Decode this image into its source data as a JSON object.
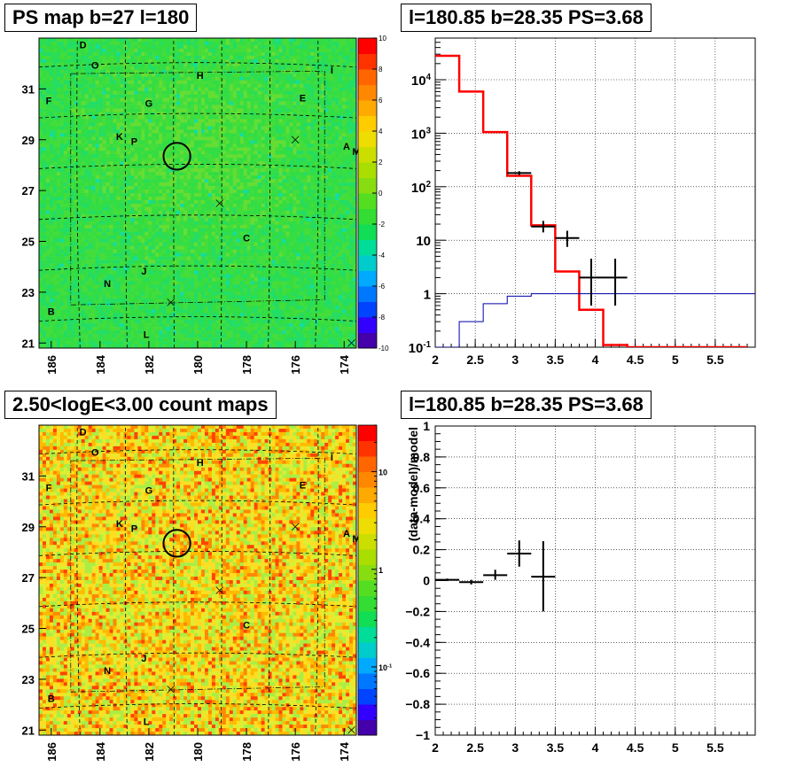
{
  "panels": {
    "top_left_title": "PS map b=27 l=180",
    "top_right_title": "l=180.85 b=28.35 PS=3.68",
    "bottom_left_title": "2.50<logE<3.00 count maps",
    "bottom_right_title": "l=180.85 b=28.35 PS=3.68"
  },
  "colors": {
    "map_bg_top": "#33dd44",
    "model_red": "#ff0000",
    "bkg_blue": "#0000aa",
    "data_black": "#000000"
  },
  "chart_data": [
    {
      "type": "heatmap",
      "panel": "ps-map",
      "title": "PS map b=27 l=180",
      "x_axis_label_ticks": [
        "186",
        "184",
        "182",
        "180",
        "178",
        "176",
        "174"
      ],
      "x_reversed": true,
      "xlim": [
        186.5,
        173.5
      ],
      "y_axis_label_ticks": [
        "21",
        "23",
        "25",
        "27",
        "29",
        "31"
      ],
      "ylim": [
        20.8,
        33
      ],
      "colorbar": {
        "scale": "linear",
        "range": [
          -10,
          10
        ],
        "ticks": [
          "-10",
          "-8",
          "-6",
          "-4",
          "-2",
          "0",
          "2",
          "4",
          "6",
          "8",
          "10"
        ]
      },
      "source_labels": [
        {
          "label": "D",
          "l": 184.7,
          "b": 32.6
        },
        {
          "label": "O",
          "l": 184.2,
          "b": 31.8
        },
        {
          "label": "I",
          "l": 174.5,
          "b": 31.6
        },
        {
          "label": "H",
          "l": 179.9,
          "b": 31.4
        },
        {
          "label": "F",
          "l": 186.1,
          "b": 30.4
        },
        {
          "label": "G",
          "l": 182.0,
          "b": 30.3
        },
        {
          "label": "E",
          "l": 175.7,
          "b": 30.5
        },
        {
          "label": "K",
          "l": 183.2,
          "b": 29.0
        },
        {
          "label": "P",
          "l": 182.6,
          "b": 28.8
        },
        {
          "label": "A",
          "l": 173.9,
          "b": 28.6
        },
        {
          "label": "M",
          "l": 173.5,
          "b": 28.4
        },
        {
          "label": "C",
          "l": 178.0,
          "b": 25.0
        },
        {
          "label": "J",
          "l": 182.2,
          "b": 23.7
        },
        {
          "label": "N",
          "l": 183.7,
          "b": 23.2
        },
        {
          "label": "B",
          "l": 186.0,
          "b": 22.1
        },
        {
          "label": "L",
          "l": 182.1,
          "b": 21.2
        }
      ],
      "cross_markers": [
        {
          "l": 176.0,
          "b": 29.0
        },
        {
          "l": 179.1,
          "b": 26.5
        },
        {
          "l": 181.1,
          "b": 22.6
        },
        {
          "l": 173.7,
          "b": 21.0
        }
      ],
      "roi_circle": {
        "l": 180.85,
        "b": 28.35,
        "radius_deg": 0.5
      }
    },
    {
      "type": "line",
      "panel": "spectrum",
      "title": "l=180.85 b=28.35 PS=3.68",
      "xlim": [
        2,
        6
      ],
      "x_ticks": [
        "2",
        "2.5",
        "3",
        "3.5",
        "4",
        "4.5",
        "5",
        "5.5"
      ],
      "y_scale": "log",
      "ylim": [
        0.1,
        60000
      ],
      "y_ticks": [
        "10^-1",
        "1",
        "10",
        "10^2",
        "10^3",
        "10^4"
      ],
      "grid": true,
      "series": [
        {
          "style": "step",
          "color": "red",
          "edges": [
            2.0,
            2.3,
            2.6,
            2.9,
            3.2,
            3.5,
            3.8,
            4.1,
            4.4,
            4.7,
            5.0,
            5.3,
            5.6,
            5.9
          ],
          "values": [
            28000,
            6000,
            1050,
            160,
            19,
            2.6,
            0.5,
            0.11,
            0.1,
            0.1,
            0.1,
            0.1,
            0.1
          ]
        },
        {
          "style": "step",
          "color": "blue",
          "edges": [
            2.0,
            2.3,
            2.6,
            2.9,
            3.2,
            3.5,
            3.8,
            4.1,
            4.4,
            4.7,
            5.0,
            5.3,
            5.6,
            5.9,
            6.0
          ],
          "values": [
            0.05,
            0.3,
            0.65,
            0.9,
            1.0,
            1.0,
            1.0,
            1.0,
            1.0,
            1.0,
            1.0,
            1.0,
            1.0,
            1.0
          ]
        },
        {
          "style": "errorbar",
          "color": "black",
          "points": [
            {
              "x": 3.05,
              "y": 180,
              "xerr": 0.15,
              "ylo": 165,
              "yhi": 195
            },
            {
              "x": 3.35,
              "y": 18,
              "xerr": 0.15,
              "ylo": 14,
              "yhi": 23
            },
            {
              "x": 3.65,
              "y": 11,
              "xerr": 0.15,
              "ylo": 7.5,
              "yhi": 15
            },
            {
              "x": 3.95,
              "y": 2,
              "xerr": 0.15,
              "ylo": 0.6,
              "yhi": 4.5
            },
            {
              "x": 4.25,
              "y": 2,
              "xerr": 0.15,
              "ylo": 0.6,
              "yhi": 4.5
            }
          ]
        }
      ]
    },
    {
      "type": "heatmap",
      "panel": "count-map",
      "title": "2.50<logE<3.00 count maps",
      "x_axis_label_ticks": [
        "186",
        "184",
        "182",
        "180",
        "178",
        "176",
        "174"
      ],
      "x_reversed": true,
      "xlim": [
        186.5,
        173.5
      ],
      "y_axis_label_ticks": [
        "21",
        "23",
        "25",
        "27",
        "29",
        "31"
      ],
      "ylim": [
        20.8,
        33
      ],
      "colorbar": {
        "scale": "log",
        "range": [
          0.02,
          30
        ],
        "ticks": [
          "10^-1",
          "1",
          "10"
        ]
      },
      "source_labels": [
        {
          "label": "D",
          "l": 184.7,
          "b": 32.6
        },
        {
          "label": "O",
          "l": 184.2,
          "b": 31.8
        },
        {
          "label": "I",
          "l": 174.5,
          "b": 31.6
        },
        {
          "label": "H",
          "l": 179.9,
          "b": 31.4
        },
        {
          "label": "F",
          "l": 186.1,
          "b": 30.4
        },
        {
          "label": "G",
          "l": 182.0,
          "b": 30.3
        },
        {
          "label": "E",
          "l": 175.7,
          "b": 30.5
        },
        {
          "label": "K",
          "l": 183.2,
          "b": 29.0
        },
        {
          "label": "P",
          "l": 182.6,
          "b": 28.8
        },
        {
          "label": "A",
          "l": 173.9,
          "b": 28.6
        },
        {
          "label": "M",
          "l": 173.5,
          "b": 28.4
        },
        {
          "label": "C",
          "l": 178.0,
          "b": 25.0
        },
        {
          "label": "J",
          "l": 182.2,
          "b": 23.7
        },
        {
          "label": "N",
          "l": 183.7,
          "b": 23.2
        },
        {
          "label": "B",
          "l": 186.0,
          "b": 22.1
        },
        {
          "label": "L",
          "l": 182.1,
          "b": 21.2
        }
      ],
      "cross_markers": [
        {
          "l": 176.0,
          "b": 29.0
        },
        {
          "l": 179.1,
          "b": 26.5
        },
        {
          "l": 181.1,
          "b": 22.6
        },
        {
          "l": 173.7,
          "b": 21.0
        }
      ],
      "roi_circle": {
        "l": 180.85,
        "b": 28.35,
        "radius_deg": 0.5
      }
    },
    {
      "type": "scatter",
      "panel": "residual",
      "title": "l=180.85 b=28.35 PS=3.68",
      "ylabel": "(data-model)/model",
      "xlim": [
        2,
        6
      ],
      "x_ticks": [
        "2",
        "2.5",
        "3",
        "3.5",
        "4",
        "4.5",
        "5",
        "5.5"
      ],
      "ylim": [
        -1,
        1
      ],
      "y_ticks": [
        "-1",
        "-0.8",
        "-0.6",
        "-0.4",
        "-0.2",
        "0",
        "0.2",
        "0.4",
        "0.6",
        "0.8",
        "1"
      ],
      "grid": true,
      "points": [
        {
          "x": 2.15,
          "y": 0.005,
          "xerr": 0.15,
          "ylo": -0.003,
          "yhi": 0.013
        },
        {
          "x": 2.45,
          "y": -0.01,
          "xerr": 0.15,
          "ylo": -0.025,
          "yhi": 0.005
        },
        {
          "x": 2.75,
          "y": 0.035,
          "xerr": 0.15,
          "ylo": 0.005,
          "yhi": 0.07
        },
        {
          "x": 3.05,
          "y": 0.175,
          "xerr": 0.15,
          "ylo": 0.09,
          "yhi": 0.26
        },
        {
          "x": 3.35,
          "y": 0.025,
          "xerr": 0.15,
          "ylo": -0.2,
          "yhi": 0.255
        }
      ]
    }
  ]
}
